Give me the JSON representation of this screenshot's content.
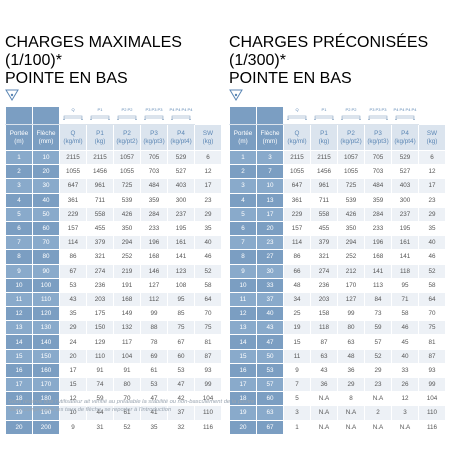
{
  "tables": [
    {
      "title": "CHARGES MAXIMALES (1/100)*",
      "subtitle": "POINTE EN BAS",
      "icons": [
        "Q",
        "P1",
        "P2 P2",
        "P3 P3 P3",
        "P4 P4 P4 P4"
      ],
      "columns": [
        {
          "name": "Portée",
          "unit": "(m)"
        },
        {
          "name": "Flèche",
          "unit": "(mm)"
        },
        {
          "name": "Q",
          "unit": "(kg/ml)"
        },
        {
          "name": "P1",
          "unit": "(kg)"
        },
        {
          "name": "P2",
          "unit": "(kg/pt2)"
        },
        {
          "name": "P3",
          "unit": "(kg/pt3)"
        },
        {
          "name": "P4",
          "unit": "(kg/pt4)"
        },
        {
          "name": "SW",
          "unit": "(kg)"
        }
      ],
      "rows": [
        [
          1,
          10,
          2115,
          2115,
          1057,
          705,
          529,
          6
        ],
        [
          2,
          20,
          1055,
          1456,
          1055,
          703,
          527,
          12
        ],
        [
          3,
          30,
          647,
          961,
          725,
          484,
          403,
          17
        ],
        [
          4,
          40,
          361,
          711,
          539,
          359,
          300,
          23
        ],
        [
          5,
          50,
          229,
          558,
          426,
          284,
          237,
          29
        ],
        [
          6,
          60,
          157,
          455,
          350,
          233,
          195,
          35
        ],
        [
          7,
          70,
          114,
          379,
          294,
          196,
          161,
          40
        ],
        [
          8,
          80,
          86,
          321,
          252,
          168,
          141,
          46
        ],
        [
          9,
          90,
          67,
          274,
          219,
          146,
          123,
          52
        ],
        [
          10,
          100,
          53,
          236,
          191,
          127,
          108,
          58
        ],
        [
          11,
          110,
          43,
          203,
          168,
          112,
          95,
          64
        ],
        [
          12,
          120,
          35,
          175,
          149,
          99,
          85,
          70
        ],
        [
          13,
          130,
          29,
          150,
          132,
          88,
          75,
          75
        ],
        [
          14,
          140,
          24,
          129,
          117,
          78,
          67,
          81
        ],
        [
          15,
          150,
          20,
          110,
          104,
          69,
          60,
          87
        ],
        [
          16,
          160,
          17,
          91,
          91,
          61,
          53,
          93
        ],
        [
          17,
          170,
          15,
          74,
          80,
          53,
          47,
          99
        ],
        [
          18,
          180,
          12,
          59,
          70,
          47,
          42,
          104
        ],
        [
          19,
          190,
          10,
          44,
          61,
          41,
          37,
          110
        ],
        [
          20,
          200,
          9,
          31,
          52,
          35,
          32,
          116
        ]
      ]
    },
    {
      "title": "CHARGES PRÉCONISÉES (1/300)*",
      "subtitle": "POINTE EN BAS",
      "icons": [
        "Q",
        "P1",
        "P2 P2",
        "P3 P3 P3",
        "P4 P4 P4 P4"
      ],
      "columns": [
        {
          "name": "Portée",
          "unit": "(m)"
        },
        {
          "name": "Flèche",
          "unit": "(mm)"
        },
        {
          "name": "Q",
          "unit": "(kg/ml)"
        },
        {
          "name": "P1",
          "unit": "(kg)"
        },
        {
          "name": "P2",
          "unit": "(kg/pt2)"
        },
        {
          "name": "P3",
          "unit": "(kg/pt3)"
        },
        {
          "name": "P4",
          "unit": "(kg/pt4)"
        },
        {
          "name": "SW",
          "unit": "(kg)"
        }
      ],
      "rows": [
        [
          1,
          3,
          2115,
          2115,
          1057,
          705,
          529,
          6
        ],
        [
          2,
          7,
          1055,
          1456,
          1055,
          703,
          527,
          12
        ],
        [
          3,
          10,
          647,
          961,
          725,
          484,
          403,
          17
        ],
        [
          4,
          13,
          361,
          711,
          539,
          359,
          300,
          23
        ],
        [
          5,
          17,
          229,
          558,
          426,
          284,
          237,
          29
        ],
        [
          6,
          20,
          157,
          455,
          350,
          233,
          195,
          35
        ],
        [
          7,
          23,
          114,
          379,
          294,
          196,
          161,
          40
        ],
        [
          8,
          27,
          86,
          321,
          252,
          168,
          141,
          46
        ],
        [
          9,
          30,
          66,
          274,
          212,
          141,
          118,
          52
        ],
        [
          10,
          33,
          48,
          236,
          170,
          113,
          95,
          58
        ],
        [
          11,
          37,
          34,
          203,
          127,
          84,
          71,
          64
        ],
        [
          12,
          40,
          25,
          158,
          99,
          73,
          58,
          70
        ],
        [
          13,
          43,
          19,
          118,
          80,
          59,
          46,
          75
        ],
        [
          14,
          47,
          15,
          87,
          63,
          57,
          45,
          81
        ],
        [
          15,
          50,
          11,
          63,
          48,
          52,
          40,
          87
        ],
        [
          16,
          53,
          9,
          43,
          36,
          29,
          33,
          93
        ],
        [
          17,
          57,
          7,
          36,
          29,
          23,
          26,
          99
        ],
        [
          18,
          60,
          5,
          "N.A",
          8,
          "N.A",
          12,
          104
        ],
        [
          19,
          63,
          3,
          "N.A",
          "N.A",
          2,
          3,
          110
        ],
        [
          20,
          67,
          1,
          "N.A",
          "N.A",
          "N.A",
          "N.A",
          116
        ]
      ]
    }
  ],
  "notes": [
    "Sous réserve que l'utilisateur ait vérifié au préalable la stabilité ou non-basculement de la poutre",
    "*Bien comprendre les taux de flèche, se reporter à l'introduction"
  ]
}
